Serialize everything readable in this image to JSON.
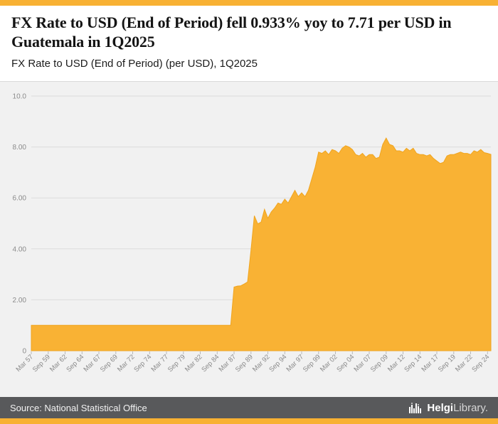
{
  "theme": {
    "accent": "#F8B133",
    "chart_bg": "#F1F1F1",
    "footer_bg": "#58595B",
    "grid": "#DCDCDC",
    "area": "#F9B234",
    "area_edge": "#F0A41E"
  },
  "header": {
    "title": "FX Rate to USD (End of Period) fell 0.933% yoy to 7.71 per USD in Guatemala in 1Q2025",
    "subtitle": "FX Rate to USD (End of Period) (per USD), 1Q2025"
  },
  "footer": {
    "source": "Source: National Statistical Office",
    "logo": {
      "bold": "Helgi",
      "light": "Library",
      "suffix": "."
    }
  },
  "chart_data": {
    "type": "area",
    "title": "FX Rate to USD (End of Period) (per USD), 1Q2025",
    "series_name": "FX Rate to USD (End of Period), Guatemala, per USD",
    "ylim": [
      0,
      10
    ],
    "y_ticks": [
      0,
      2,
      4,
      6,
      8,
      10
    ],
    "y_tick_labels": [
      "0",
      "2.00",
      "4.00",
      "6.00",
      "8.00",
      "10.0"
    ],
    "grid": true,
    "legend": "none",
    "color": "#F9B234",
    "x_tick_every": 5,
    "x_tick_labels": [
      "Mar 57",
      "Sep 59",
      "Mar 62",
      "Sep 64",
      "Mar 67",
      "Sep 69",
      "Mar 72",
      "Sep 74",
      "Mar 77",
      "Sep 79",
      "Mar 82",
      "Sep 84",
      "Mar 87",
      "Sep 89",
      "Mar 92",
      "Sep 94",
      "Mar 97",
      "Sep 99",
      "Mar 02",
      "Sep 04",
      "Mar 07",
      "Sep 09",
      "Mar 12",
      "Sep 14",
      "Mar 17",
      "Sep 19",
      "Mar 22",
      "Sep 24"
    ],
    "x_start": "Mar 1957",
    "x_end": "Mar 2025",
    "frequency": "semiannual",
    "last_value": 7.71,
    "values": [
      1.0,
      1.0,
      1.0,
      1.0,
      1.0,
      1.0,
      1.0,
      1.0,
      1.0,
      1.0,
      1.0,
      1.0,
      1.0,
      1.0,
      1.0,
      1.0,
      1.0,
      1.0,
      1.0,
      1.0,
      1.0,
      1.0,
      1.0,
      1.0,
      1.0,
      1.0,
      1.0,
      1.0,
      1.0,
      1.0,
      1.0,
      1.0,
      1.0,
      1.0,
      1.0,
      1.0,
      1.0,
      1.0,
      1.0,
      1.0,
      1.0,
      1.0,
      1.0,
      1.0,
      1.0,
      1.0,
      1.0,
      1.0,
      1.0,
      1.0,
      1.0,
      1.0,
      1.0,
      1.0,
      1.0,
      1.0,
      1.0,
      1.0,
      1.0,
      1.0,
      2.5,
      2.54,
      2.55,
      2.62,
      2.7,
      3.95,
      5.3,
      4.98,
      5.05,
      5.55,
      5.2,
      5.45,
      5.6,
      5.8,
      5.75,
      5.95,
      5.8,
      6.05,
      6.3,
      6.05,
      6.2,
      6.05,
      6.3,
      6.75,
      7.2,
      7.8,
      7.75,
      7.85,
      7.7,
      7.9,
      7.85,
      7.75,
      7.95,
      8.05,
      8.0,
      7.9,
      7.7,
      7.65,
      7.75,
      7.6,
      7.7,
      7.7,
      7.55,
      7.6,
      8.1,
      8.35,
      8.1,
      8.05,
      7.85,
      7.85,
      7.8,
      7.95,
      7.85,
      7.95,
      7.75,
      7.7,
      7.7,
      7.65,
      7.7,
      7.55,
      7.45,
      7.35,
      7.4,
      7.65,
      7.7,
      7.7,
      7.75,
      7.8,
      7.75,
      7.75,
      7.7,
      7.85,
      7.8,
      7.9,
      7.78,
      7.75,
      7.71
    ]
  }
}
